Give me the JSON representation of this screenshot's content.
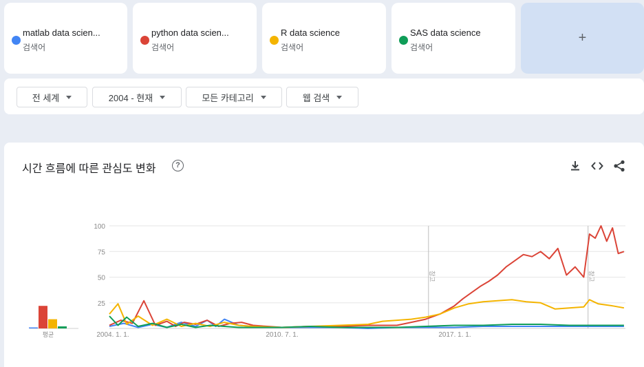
{
  "terms": [
    {
      "name": "matlab data scien...",
      "sub": "검색어",
      "color": "#4285f4"
    },
    {
      "name": "python data scien...",
      "sub": "검색어",
      "color": "#db4437"
    },
    {
      "name": "R data science",
      "sub": "검색어",
      "color": "#f4b400"
    },
    {
      "name": "SAS data science",
      "sub": "검색어",
      "color": "#0f9d58"
    }
  ],
  "add_label": "+",
  "filters": [
    {
      "label": "전 세계"
    },
    {
      "label": "2004 - 현재"
    },
    {
      "label": "모든 카테고리"
    },
    {
      "label": "웹 검색"
    }
  ],
  "chart_title": "시간 흐름에 따른 관심도 변화",
  "help_label": "?",
  "icons": [
    "download-icon",
    "embed-icon",
    "share-icon"
  ],
  "chart_data": {
    "type": "line",
    "x_labels": [
      "2004. 1. 1.",
      "2010. 7. 1.",
      "2017. 1. 1."
    ],
    "y_ticks": [
      25,
      50,
      75,
      100
    ],
    "ylim": [
      0,
      100
    ],
    "xlim": [
      2004.0,
      2021.95
    ],
    "grid": true,
    "annotations": [
      {
        "x": 2015.1,
        "label": "참고"
      },
      {
        "x": 2020.65,
        "label": "참고"
      }
    ],
    "average": {
      "label": "평균",
      "values": [
        1,
        22,
        9,
        2
      ]
    },
    "series": [
      {
        "name": "matlab data scien...",
        "color": "#4285f4",
        "x": [
          2004.0,
          2004.5,
          2005.0,
          2005.5,
          2006.0,
          2006.5,
          2007.0,
          2007.4,
          2007.7,
          2008.0,
          2008.5,
          2009.0,
          2009.5,
          2010.0,
          2011.0,
          2012.0,
          2013.0,
          2014.0,
          2015.0,
          2016.0,
          2017.0,
          2018.0,
          2019.0,
          2020.0,
          2021.0,
          2021.9
        ],
        "y": [
          2,
          5,
          1,
          4,
          1,
          6,
          2,
          8,
          2,
          9,
          3,
          2,
          1,
          1,
          1,
          1,
          0,
          1,
          1,
          1,
          2,
          2,
          2,
          2,
          2,
          2
        ]
      },
      {
        "name": "python data scien...",
        "color": "#db4437",
        "x": [
          2004.0,
          2004.4,
          2004.8,
          2005.2,
          2005.6,
          2006.0,
          2006.3,
          2006.6,
          2007.0,
          2007.4,
          2007.8,
          2008.2,
          2008.6,
          2009.0,
          2009.5,
          2010.0,
          2011.0,
          2012.0,
          2013.0,
          2014.0,
          2014.5,
          2015.0,
          2015.5,
          2016.0,
          2016.3,
          2016.6,
          2016.9,
          2017.2,
          2017.5,
          2017.8,
          2018.1,
          2018.4,
          2018.7,
          2019.0,
          2019.3,
          2019.6,
          2019.9,
          2020.2,
          2020.5,
          2020.7,
          2020.9,
          2021.1,
          2021.3,
          2021.5,
          2021.7,
          2021.9
        ],
        "y": [
          3,
          8,
          5,
          27,
          3,
          7,
          2,
          6,
          4,
          8,
          2,
          5,
          6,
          3,
          2,
          1,
          2,
          2,
          3,
          3,
          6,
          9,
          14,
          22,
          29,
          35,
          41,
          46,
          52,
          60,
          66,
          72,
          70,
          75,
          68,
          78,
          52,
          60,
          50,
          92,
          88,
          100,
          85,
          98,
          73,
          75
        ]
      },
      {
        "name": "R data science",
        "color": "#f4b400",
        "x": [
          2004.0,
          2004.3,
          2004.6,
          2005.0,
          2005.5,
          2006.0,
          2006.5,
          2007.0,
          2007.5,
          2008.0,
          2008.5,
          2009.0,
          2010.0,
          2011.0,
          2012.0,
          2013.0,
          2013.5,
          2014.0,
          2014.5,
          2015.0,
          2015.5,
          2016.0,
          2016.5,
          2017.0,
          2017.5,
          2018.0,
          2018.5,
          2019.0,
          2019.5,
          2020.0,
          2020.5,
          2020.7,
          2021.0,
          2021.5,
          2021.9
        ],
        "y": [
          14,
          24,
          4,
          12,
          3,
          9,
          2,
          5,
          2,
          6,
          3,
          2,
          1,
          2,
          3,
          4,
          7,
          8,
          9,
          11,
          14,
          20,
          24,
          26,
          27,
          28,
          26,
          25,
          19,
          20,
          21,
          28,
          24,
          22,
          20
        ]
      },
      {
        "name": "SAS data science",
        "color": "#0f9d58",
        "x": [
          2004.0,
          2004.3,
          2004.6,
          2005.0,
          2005.5,
          2006.0,
          2006.5,
          2007.0,
          2007.5,
          2008.0,
          2008.5,
          2009.0,
          2010.0,
          2011.0,
          2012.0,
          2013.0,
          2014.0,
          2015.0,
          2016.0,
          2017.0,
          2018.0,
          2019.0,
          2020.0,
          2021.0,
          2021.9
        ],
        "y": [
          12,
          3,
          11,
          2,
          5,
          1,
          4,
          1,
          3,
          2,
          1,
          1,
          1,
          2,
          1,
          1,
          1,
          2,
          3,
          3,
          4,
          4,
          3,
          3,
          3
        ]
      }
    ]
  }
}
